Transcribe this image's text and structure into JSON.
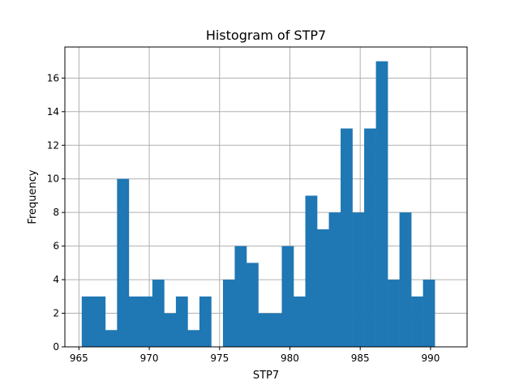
{
  "chart_data": {
    "type": "bar",
    "title": "Histogram of STP7",
    "xlabel": "STP7",
    "ylabel": "Frequency",
    "xlim": [
      964.0,
      992.6
    ],
    "ylim": [
      0,
      17.85
    ],
    "xticks": [
      965,
      970,
      975,
      980,
      985,
      990
    ],
    "yticks": [
      0,
      2,
      4,
      6,
      8,
      10,
      12,
      14,
      16
    ],
    "grid": true,
    "bar_color": "#1f77b4",
    "bin_start": 965.2,
    "bin_width": 0.8367,
    "values": [
      3,
      3,
      1,
      10,
      3,
      3,
      4,
      2,
      3,
      1,
      3,
      0,
      4,
      6,
      5,
      2,
      2,
      6,
      3,
      9,
      7,
      8,
      13,
      8,
      13,
      17,
      4,
      8,
      3,
      4
    ]
  }
}
